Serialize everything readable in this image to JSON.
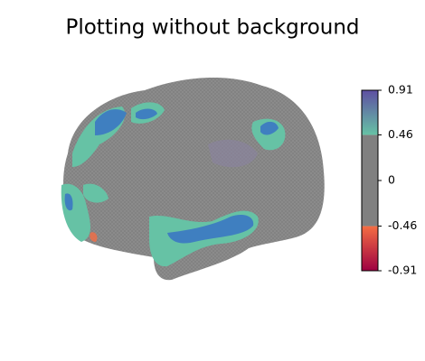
{
  "chart_data": {
    "type": "surface",
    "title": "Plotting without background",
    "ylim": [
      -0.91,
      0.91
    ],
    "yticks": [
      -0.91,
      -0.46,
      0,
      0.46,
      0.91
    ],
    "threshold": 0.46,
    "negative_colors": [
      "#9e0142",
      "#f46d43"
    ],
    "threshold_color": "#808080",
    "positive_colors": [
      "#66c2a5",
      "#5e4fa2"
    ]
  }
}
